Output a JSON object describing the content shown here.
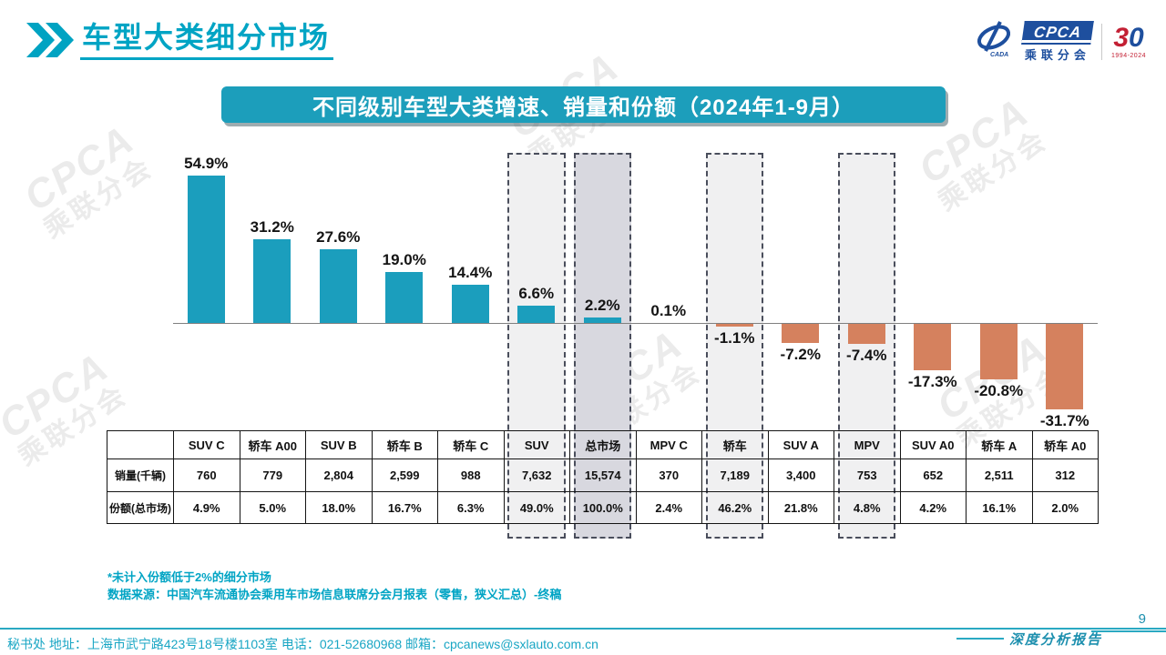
{
  "header": {
    "title": "车型大类细分市场"
  },
  "logo": {
    "cpca": "CPCA",
    "sub": "乘联分会",
    "anniversary_3": "3",
    "anniversary_0": "0",
    "years": "1994-2024"
  },
  "banner": {
    "title": "不同级别车型大类增速、销量和份额（2024年1-9月）"
  },
  "chart_data": {
    "type": "bar",
    "title": "不同级别车型大类增速、销量和份额（2024年1-9月）",
    "categories": [
      "SUV C",
      "轿车 A00",
      "SUV B",
      "轿车 B",
      "轿车 C",
      "SUV",
      "总市场",
      "MPV C",
      "轿车",
      "SUV A",
      "MPV",
      "SUV A0",
      "轿车 A",
      "轿车 A0"
    ],
    "series": [
      {
        "name": "增速(%)",
        "values": [
          54.9,
          31.2,
          27.6,
          19.0,
          14.4,
          6.6,
          2.2,
          0.1,
          -1.1,
          -7.2,
          -7.4,
          -17.3,
          -20.8,
          -31.7
        ]
      },
      {
        "name": "销量(千辆)",
        "values": [
          "760",
          "779",
          "2,804",
          "2,599",
          "988",
          "7,632",
          "15,574",
          "370",
          "7,189",
          "3,400",
          "753",
          "652",
          "2,511",
          "312"
        ]
      },
      {
        "name": "份额(总市场)",
        "values": [
          "4.9%",
          "5.0%",
          "18.0%",
          "16.7%",
          "6.3%",
          "49.0%",
          "100.0%",
          "2.4%",
          "46.2%",
          "21.8%",
          "4.8%",
          "4.2%",
          "16.1%",
          "2.0%"
        ]
      }
    ],
    "growth_labels": [
      "54.9%",
      "31.2%",
      "27.6%",
      "19.0%",
      "14.4%",
      "6.6%",
      "2.2%",
      "0.1%",
      "-1.1%",
      "-7.2%",
      "-7.4%",
      "-17.3%",
      "-20.8%",
      "-31.7%"
    ],
    "highlighted_categories": [
      "SUV",
      "总市场",
      "轿车",
      "MPV"
    ],
    "highlight_indices": [
      5,
      6,
      8,
      10
    ],
    "primary_highlight_index": 6,
    "bar_colors": {
      "positive": "#1b9ebd",
      "negative": "#d5815e"
    },
    "ylim": [
      -35,
      60
    ],
    "grid": false,
    "legend": "none",
    "xlabel": "",
    "ylabel": ""
  },
  "table": {
    "row_labels": [
      "销量(千辆)",
      "份额(总市场)"
    ]
  },
  "footnotes": [
    "*未计入份额低于2%的细分市场",
    "数据来源：中国汽车流通协会乘用车市场信息联席分会月报表（零售，狭义汇总）-终稿"
  ],
  "footer": {
    "contact": "秘书处  地址：上海市武宁路423号18号楼1103室 电话：021-52680968  邮箱：cpcanews@sxlauto.com.cn",
    "report_label": "深度分析报告",
    "page_number": "9"
  },
  "watermark": {
    "line1": "CPCA",
    "line2": "乘联分会"
  }
}
